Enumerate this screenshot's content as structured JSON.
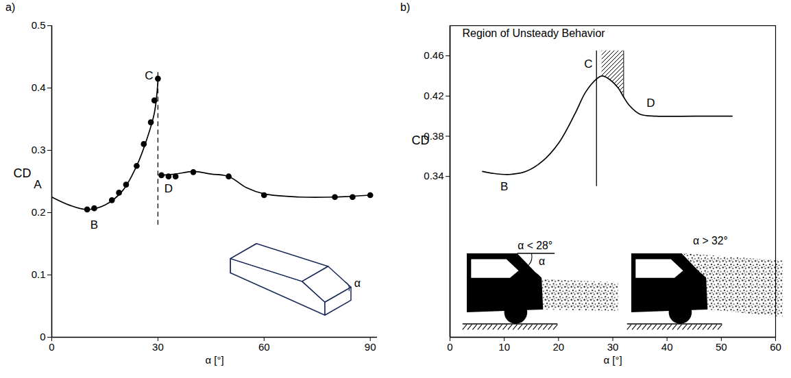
{
  "chart_data": [
    {
      "type": "line",
      "panel": "a)",
      "x_label": "α [°]",
      "y_label": "CD",
      "xlim": [
        0,
        92
      ],
      "xticks": [
        0,
        30,
        60,
        90
      ],
      "ylim": [
        0,
        0.5
      ],
      "yticks": [
        0,
        0.1,
        0.2,
        0.3,
        0.4,
        0.5
      ],
      "grid": false,
      "series": [
        {
          "type": "line",
          "line_style": "solid",
          "color": "#000000",
          "x": [
            0,
            5,
            10,
            15,
            20,
            24,
            27,
            29,
            30,
            30.5,
            31,
            35,
            40,
            45,
            50,
            55,
            60,
            70,
            80,
            90
          ],
          "values": [
            0.225,
            0.212,
            0.205,
            0.212,
            0.235,
            0.275,
            0.32,
            0.36,
            0.41,
            null,
            0.26,
            0.262,
            0.266,
            0.262,
            0.258,
            0.24,
            0.23,
            0.225,
            0.225,
            0.228
          ]
        },
        {
          "type": "scatter",
          "marker": "circle",
          "color": "#000000",
          "x": [
            10,
            12,
            17,
            19,
            21,
            24,
            26,
            28,
            29,
            30,
            31,
            33,
            35,
            40,
            50,
            60,
            80,
            85,
            90
          ],
          "values": [
            0.205,
            0.207,
            0.22,
            0.232,
            0.245,
            0.275,
            0.31,
            0.345,
            0.38,
            0.415,
            0.26,
            0.258,
            0.258,
            0.265,
            0.258,
            0.228,
            0.225,
            0.225,
            0.228
          ]
        }
      ],
      "reference_line": {
        "x": 30,
        "y": [
          0.18,
          0.43
        ],
        "line_style": "dashed"
      },
      "annotations": [
        {
          "text": "A",
          "x": -4,
          "y": 0.245
        },
        {
          "text": "B",
          "x": 12,
          "y": 0.18
        },
        {
          "text": "C",
          "x": 27.5,
          "y": 0.42
        },
        {
          "text": "D",
          "x": 33,
          "y": 0.238
        }
      ],
      "inset_label": "α"
    },
    {
      "type": "line",
      "panel": "b)",
      "title": "Region of Unsteady Behavior",
      "x_label": "α [°]",
      "y_label": "CD",
      "xlim": [
        0,
        60
      ],
      "xticks": [
        0,
        10,
        20,
        30,
        40,
        50,
        60
      ],
      "ylim": [
        0.18,
        0.49
      ],
      "yticks": [
        0.34,
        0.38,
        0.42,
        0.46
      ],
      "grid": false,
      "series": [
        {
          "type": "line",
          "line_style": "solid",
          "color": "#000000",
          "x": [
            6,
            8,
            11,
            14,
            17,
            20,
            23,
            25,
            27,
            28,
            29,
            31,
            32,
            33,
            35,
            38,
            45,
            52
          ],
          "values": [
            0.345,
            0.343,
            0.342,
            0.345,
            0.355,
            0.373,
            0.402,
            0.424,
            0.437,
            0.44,
            0.438,
            0.428,
            0.419,
            0.411,
            0.402,
            0.4,
            0.4,
            0.4
          ]
        }
      ],
      "unsteady_region": {
        "x": [
          28,
          32
        ],
        "y_top": 0.465
      },
      "reference_line": {
        "x": 27,
        "y": [
          0.33,
          0.465
        ],
        "line_style": "solid"
      },
      "annotations": [
        {
          "text": "B",
          "x": 10,
          "y": 0.33
        },
        {
          "text": "C",
          "x": 25.5,
          "y": 0.452
        },
        {
          "text": "D",
          "x": 37,
          "y": 0.413
        }
      ],
      "sketch_labels": [
        "α < 28°",
        "α > 32°"
      ],
      "angle_label": "α"
    }
  ]
}
